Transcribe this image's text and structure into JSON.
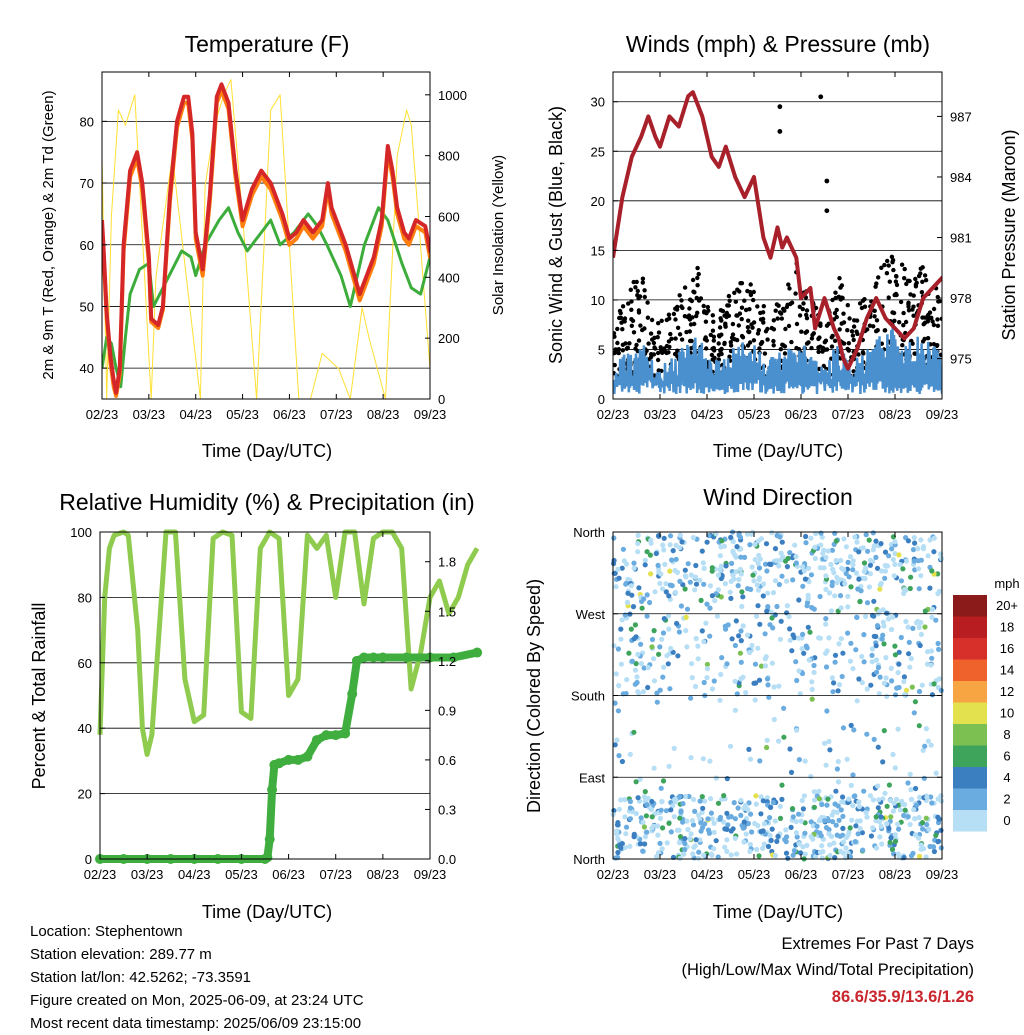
{
  "chart_data": [
    {
      "type": "line",
      "title": "Temperature (F)",
      "xlabel": "Time (Day/UTC)",
      "ylabel": "2m & 9m T (Red, Orange) & 2m Td (Green)",
      "y2label": "Solar Insolation (Yellow)",
      "x_ticks": [
        "02/23",
        "03/23",
        "04/23",
        "05/23",
        "06/23",
        "07/23",
        "08/23",
        "09/23"
      ],
      "ylim": [
        35,
        88
      ],
      "y_ticks": [
        40,
        50,
        60,
        70,
        80
      ],
      "y2lim": [
        0,
        1075
      ],
      "y2_ticks": [
        0,
        200,
        400,
        600,
        800,
        1000
      ],
      "grid": true,
      "series": [
        {
          "color": "#d62728",
          "x": [
            0,
            0.03,
            0.1,
            0.18,
            0.25,
            0.3,
            0.38,
            0.46,
            0.6,
            0.75,
            0.86,
            1.0,
            1.05,
            1.2,
            1.3,
            1.45,
            1.6,
            1.75,
            1.84,
            1.93,
            2.0,
            2.15,
            2.3,
            2.45,
            2.55,
            2.7,
            2.85,
            3.0,
            3.2,
            3.4,
            3.6,
            3.85,
            4.0,
            4.15,
            4.3,
            4.5,
            4.7,
            4.82,
            4.9,
            5.0,
            5.2,
            5.5,
            5.8,
            5.97,
            6.1,
            6.2,
            6.3,
            6.45,
            6.55,
            6.7,
            6.9,
            7.0,
            7.15,
            7.3,
            7.45,
            7.6,
            7.8,
            8.0
          ],
          "y": [
            64,
            60,
            49,
            42,
            38,
            36,
            40,
            60,
            72,
            75,
            70,
            58,
            48,
            47,
            50,
            68,
            80,
            84,
            84,
            78,
            62,
            56,
            68,
            84,
            86,
            83,
            72,
            64,
            69,
            72,
            70,
            65,
            61,
            62,
            64,
            62,
            64,
            70,
            66,
            64,
            60,
            52,
            58,
            64,
            76,
            72,
            66,
            62,
            61,
            64,
            63,
            59,
            61,
            64,
            63,
            62,
            62,
            62
          ]
        },
        {
          "color": "#ff7f0e",
          "x": [
            0,
            0.03,
            0.1,
            0.18,
            0.25,
            0.3,
            0.38,
            0.46,
            0.6,
            0.75,
            0.86,
            1.0,
            1.05,
            1.2,
            1.3,
            1.45,
            1.6,
            1.75,
            1.84,
            1.93,
            2.0,
            2.15,
            2.3,
            2.45,
            2.55,
            2.7,
            2.85,
            3.0,
            3.2,
            3.4,
            3.6,
            3.85,
            4.0,
            4.15,
            4.3,
            4.5,
            4.7,
            4.82,
            4.9,
            5.0,
            5.2,
            5.5,
            5.8,
            5.97,
            6.1,
            6.2,
            6.3,
            6.45,
            6.55,
            6.7,
            6.9,
            7.0,
            7.15,
            7.3,
            7.45,
            7.6,
            7.8,
            8.0
          ],
          "y": [
            63,
            59,
            48,
            41,
            37,
            35.5,
            39,
            59,
            71,
            74,
            69,
            57,
            47.5,
            46.5,
            49.5,
            67,
            79,
            83,
            83,
            77,
            61,
            55,
            67,
            83,
            85,
            82,
            71,
            63,
            68,
            71,
            69,
            64,
            60,
            61,
            63,
            61,
            63,
            69,
            65,
            63,
            59,
            51,
            57,
            63,
            75,
            71,
            65,
            61,
            60,
            63,
            62,
            58,
            60,
            63,
            62,
            61,
            61,
            61
          ]
        },
        {
          "color": "#3cac3a",
          "x": [
            0,
            0.1,
            0.2,
            0.3,
            0.4,
            0.5,
            0.6,
            0.8,
            1.0,
            1.1,
            1.3,
            1.5,
            1.7,
            1.9,
            2.0,
            2.2,
            2.5,
            2.7,
            2.9,
            3.1,
            3.3,
            3.6,
            3.8,
            4.1,
            4.4,
            4.6,
            4.8,
            5.1,
            5.3,
            5.6,
            5.9,
            6.1,
            6.4,
            6.6,
            6.8,
            7.0,
            7.2,
            7.4,
            7.6,
            7.8,
            8.0
          ],
          "y": [
            40,
            45,
            44,
            40,
            37,
            45,
            52,
            56,
            57,
            50,
            53,
            56,
            59,
            58,
            55,
            60,
            64,
            66,
            62,
            59,
            61,
            64,
            60,
            62,
            65,
            63,
            60,
            55,
            50,
            60,
            66,
            64,
            57,
            53,
            52,
            58,
            55,
            56,
            52,
            57,
            60
          ]
        },
        {
          "color": "#ffe033",
          "axis": "y2",
          "x": [
            0,
            0.05,
            0.1,
            0.2,
            0.35,
            0.5,
            0.7,
            1.05,
            1.15,
            1.5,
            2.1,
            2.2,
            2.4,
            2.6,
            2.75,
            3.0,
            3.3,
            3.6,
            3.8,
            4.2,
            4.45,
            4.7,
            5.05,
            5.3,
            5.55,
            5.7,
            6.05,
            6.3,
            6.5,
            6.6,
            7.05,
            7.3,
            7.6,
            7.8,
            7.95,
            8.0
          ],
          "y": [
            800,
            400,
            0,
            600,
            950,
            900,
            1000,
            0,
            400,
            800,
            0,
            700,
            900,
            1000,
            1050,
            600,
            0,
            950,
            1000,
            0,
            0,
            150,
            100,
            0,
            300,
            200,
            0,
            800,
            950,
            900,
            0,
            100,
            0,
            500,
            300,
            200
          ]
        }
      ]
    },
    {
      "type": "scatter",
      "title": "Winds (mph) & Pressure (mb)",
      "xlabel": "Time (Day/UTC)",
      "ylabel": "Sonic Wind & Gust (Blue, Black)",
      "y2label": "Station Pressure (Maroon)",
      "x_ticks": [
        "02/23",
        "03/23",
        "04/23",
        "05/23",
        "06/23",
        "07/23",
        "08/23",
        "09/23"
      ],
      "ylim": [
        0,
        33
      ],
      "y_ticks": [
        0,
        5,
        10,
        15,
        20,
        25,
        30
      ],
      "y2lim": [
        973,
        989.2
      ],
      "y2_ticks": [
        975,
        978,
        981,
        984,
        987
      ],
      "grid": true,
      "pressure": {
        "color": "#a8202a",
        "x": [
          0,
          0.2,
          0.4,
          0.6,
          0.75,
          0.9,
          1.0,
          1.2,
          1.4,
          1.6,
          1.7,
          1.9,
          2.1,
          2.25,
          2.4,
          2.6,
          2.8,
          3.0,
          3.2,
          3.35,
          3.5,
          3.6,
          3.7,
          3.9,
          4.0,
          4.2,
          4.3,
          4.5,
          4.7,
          4.8,
          4.9,
          5.0,
          5.2,
          5.4,
          5.6,
          5.8,
          6.0,
          6.2,
          6.4,
          6.6,
          6.8,
          7.0,
          7.3,
          7.6,
          7.8,
          8.0
        ],
        "y": [
          980,
          983,
          985,
          986,
          987,
          986,
          985.5,
          987,
          986.5,
          988,
          988.2,
          987,
          985,
          984.5,
          985.5,
          984,
          983,
          984,
          981,
          980,
          981.5,
          980.5,
          981,
          980,
          978,
          978.5,
          976.5,
          978,
          976.5,
          976,
          975,
          974.5,
          975.5,
          977,
          978,
          977,
          976.5,
          976,
          976.5,
          978,
          978.5,
          979,
          979,
          978.5,
          978.5,
          977.5
        ]
      },
      "wind_blue": {
        "color": "#4a90cf"
      },
      "gust_black": {
        "color": "#000000",
        "outliers": [
          {
            "x": 4.42,
            "y": 30.5
          },
          {
            "x": 4.55,
            "y": 22
          },
          {
            "x": 4.55,
            "y": 19
          },
          {
            "x": 3.55,
            "y": 29.5
          },
          {
            "x": 3.55,
            "y": 27
          }
        ]
      }
    },
    {
      "type": "line",
      "title": "Relative Humidity (%) & Precipitation (in)",
      "xlabel": "Time (Day/UTC)",
      "ylabel": "Percent & Total Rainfall",
      "x_ticks": [
        "02/23",
        "03/23",
        "04/23",
        "05/23",
        "06/23",
        "07/23",
        "08/23",
        "09/23"
      ],
      "ylim": [
        0,
        100
      ],
      "y_ticks": [
        0,
        20,
        40,
        60,
        80,
        100
      ],
      "y2lim": [
        0,
        1.98
      ],
      "y2_ticks": [
        "0.0",
        "0.3",
        "0.6",
        "0.9",
        "1.2",
        "1.5",
        "1.8"
      ],
      "grid": true,
      "series": [
        {
          "color": "#8fcb4f",
          "name": "RH",
          "x": [
            0,
            0.1,
            0.2,
            0.3,
            0.5,
            0.6,
            0.8,
            0.9,
            1.0,
            1.1,
            1.4,
            1.6,
            1.8,
            2.0,
            2.2,
            2.4,
            2.6,
            2.8,
            3.0,
            3.2,
            3.4,
            3.6,
            3.8,
            4.0,
            4.2,
            4.4,
            4.6,
            4.8,
            5.0,
            5.2,
            5.4,
            5.6,
            5.8,
            6.0,
            6.2,
            6.4,
            6.6,
            6.8,
            7.0,
            7.2,
            7.4,
            7.6,
            7.8,
            8.0
          ],
          "y": [
            38,
            80,
            95,
            99,
            100,
            99,
            70,
            40,
            32,
            38,
            100,
            100,
            55,
            42,
            44,
            98,
            100,
            99,
            45,
            43,
            95,
            100,
            98,
            50,
            55,
            99,
            95,
            99,
            80,
            100,
            100,
            78,
            98,
            100,
            100,
            95,
            52,
            63,
            80,
            85,
            75,
            80,
            90,
            95
          ]
        },
        {
          "color": "#3fae3f",
          "name": "Precip",
          "axis": "y2",
          "x": [
            0,
            0.5,
            1.0,
            1.5,
            2.0,
            2.5,
            3.0,
            3.5,
            3.55,
            3.6,
            3.65,
            3.7,
            3.8,
            4.0,
            4.2,
            4.4,
            4.6,
            4.8,
            5.0,
            5.2,
            5.35,
            5.45,
            5.6,
            5.8,
            6.0,
            6.5,
            7.0,
            7.5,
            8.0
          ],
          "y": [
            0,
            0,
            0,
            0,
            0,
            0,
            0,
            0,
            0.01,
            0.12,
            0.42,
            0.57,
            0.58,
            0.6,
            0.6,
            0.62,
            0.72,
            0.75,
            0.75,
            0.76,
            1.0,
            1.2,
            1.22,
            1.22,
            1.22,
            1.22,
            1.22,
            1.22,
            1.25
          ]
        }
      ]
    },
    {
      "type": "scatter",
      "title": "Wind Direction",
      "xlabel": "Time (Day/UTC)",
      "ylabel": "Direction (Colored By Speed)",
      "x_ticks": [
        "02/23",
        "03/23",
        "04/23",
        "05/23",
        "06/23",
        "07/23",
        "08/23",
        "09/23"
      ],
      "y_ticks": [
        "North",
        "West",
        "South",
        "East",
        "North"
      ],
      "ylim": [
        0,
        360
      ],
      "grid": true,
      "legend": {
        "title": "mph",
        "placement": "right",
        "labels": [
          "20+",
          "18",
          "16",
          "14",
          "12",
          "10",
          "8",
          "6",
          "4",
          "2",
          "0"
        ],
        "colors": [
          "#8b1a1a",
          "#b81d22",
          "#d7302b",
          "#f0622b",
          "#f7a542",
          "#e4e14f",
          "#7cc052",
          "#3ea45b",
          "#3b7fc0",
          "#6aace0",
          "#b6def5"
        ]
      }
    }
  ],
  "info": {
    "location": "Location: Stephentown",
    "elevation": "Station elevation: 289.77 m",
    "latlon": "Station lat/lon: 42.5262; -73.3591",
    "created": "Figure created on Mon, 2025-06-09, at 23:24 UTC",
    "recent": "Most recent data timestamp: 2025/06/09 23:15:00"
  },
  "extremes": {
    "line1": "Extremes For Past 7 Days",
    "line2": "(High/Low/Max Wind/Total Precipitation)",
    "values": "86.6/35.9/13.6/1.26"
  }
}
